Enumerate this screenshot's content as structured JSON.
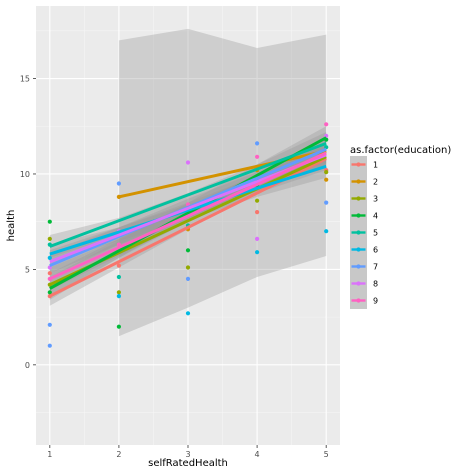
{
  "chart_data": {
    "type": "scatter",
    "xlabel": "selfRatedHealth",
    "ylabel": "health",
    "xlim": [
      0.8,
      5.2
    ],
    "ylim": [
      -4.2,
      18.8
    ],
    "x_ticks": [
      "1",
      "2",
      "3",
      "4",
      "5"
    ],
    "y_ticks": [
      "0",
      "5",
      "10",
      "15"
    ],
    "grid": true,
    "legend_title": "as.factor(education)",
    "legend_position": "right",
    "series": [
      {
        "name": "1",
        "color": "#F8766D",
        "fit": {
          "x": [
            1,
            5
          ],
          "y": [
            3.6,
            10.8
          ]
        },
        "ci": {
          "x": [
            1,
            2,
            3,
            4,
            5
          ],
          "lo": [
            3.1,
            5.1,
            7.1,
            9.0,
            10.2
          ],
          "hi": [
            4.1,
            6.1,
            8.0,
            9.9,
            11.4
          ]
        },
        "points": [
          [
            1,
            3.6
          ],
          [
            1,
            4.8
          ],
          [
            2,
            5.2
          ],
          [
            3,
            8.2
          ],
          [
            4,
            8.0
          ],
          [
            5,
            10.2
          ]
        ]
      },
      {
        "name": "2",
        "color": "#D39200",
        "fit": {
          "x": [
            2,
            5
          ],
          "y": [
            8.8,
            11.2
          ]
        },
        "ci": {
          "x": [
            2,
            3,
            4,
            5
          ],
          "lo": [
            1.5,
            3.0,
            4.6,
            5.7
          ],
          "hi": [
            17.0,
            17.6,
            16.6,
            17.3
          ]
        },
        "points": [
          [
            2,
            8.8
          ],
          [
            3,
            7.1
          ],
          [
            4,
            10.2
          ],
          [
            5,
            9.7
          ]
        ]
      },
      {
        "name": "3",
        "color": "#93AA00",
        "fit": {
          "x": [
            1,
            5
          ],
          "y": [
            4.2,
            10.9
          ]
        },
        "ci": {
          "x": [
            1,
            2,
            3,
            4,
            5
          ],
          "lo": [
            3.6,
            5.6,
            7.5,
            9.2,
            10.3
          ],
          "hi": [
            4.8,
            6.6,
            8.3,
            10.0,
            11.5
          ]
        },
        "points": [
          [
            1,
            4.2
          ],
          [
            1,
            6.6
          ],
          [
            2,
            3.8
          ],
          [
            3,
            5.1
          ],
          [
            4,
            8.6
          ],
          [
            5,
            10.1
          ]
        ]
      },
      {
        "name": "4",
        "color": "#00BA38",
        "fit": {
          "x": [
            1,
            5
          ],
          "y": [
            4.0,
            11.9
          ]
        },
        "ci": {
          "x": [
            1,
            2,
            3,
            4,
            5
          ],
          "lo": [
            3.4,
            5.6,
            7.7,
            9.7,
            11.3
          ],
          "hi": [
            4.6,
            6.5,
            8.5,
            10.5,
            12.5
          ]
        },
        "points": [
          [
            1,
            7.5
          ],
          [
            1,
            3.8
          ],
          [
            2,
            2.0
          ],
          [
            3,
            6.0
          ],
          [
            4,
            9.4
          ],
          [
            5,
            11.8
          ]
        ]
      },
      {
        "name": "5",
        "color": "#00C19F",
        "fit": {
          "x": [
            1,
            5
          ],
          "y": [
            6.2,
            11.6
          ]
        },
        "ci": {
          "x": [
            1,
            2,
            3,
            4,
            5
          ],
          "lo": [
            5.6,
            6.8,
            8.3,
            9.7,
            11.0
          ],
          "hi": [
            6.8,
            7.7,
            9.0,
            10.5,
            12.2
          ]
        },
        "points": [
          [
            1,
            6.3
          ],
          [
            2,
            4.6
          ],
          [
            3,
            7.3
          ],
          [
            4,
            9.7
          ],
          [
            5,
            11.4
          ]
        ]
      },
      {
        "name": "6",
        "color": "#00B9E3",
        "fit": {
          "x": [
            1,
            5
          ],
          "y": [
            5.8,
            10.4
          ]
        },
        "ci": {
          "x": [
            1,
            2,
            3,
            4,
            5
          ],
          "lo": [
            5.3,
            6.5,
            7.6,
            8.8,
            9.8
          ],
          "hi": [
            6.3,
            7.2,
            8.4,
            9.6,
            11.0
          ]
        },
        "points": [
          [
            1,
            5.6
          ],
          [
            2,
            3.6
          ],
          [
            3,
            2.7
          ],
          [
            4,
            5.9
          ],
          [
            5,
            7.0
          ]
        ]
      },
      {
        "name": "7",
        "color": "#619CFF",
        "fit": {
          "x": [
            1,
            5
          ],
          "y": [
            5.2,
            11.3
          ]
        },
        "ci": {
          "x": [
            1,
            2,
            3,
            4,
            5
          ],
          "lo": [
            4.6,
            6.3,
            7.9,
            9.3,
            10.6
          ],
          "hi": [
            5.8,
            7.2,
            8.7,
            10.1,
            11.8
          ]
        },
        "points": [
          [
            1,
            1.0
          ],
          [
            1,
            2.1
          ],
          [
            2,
            9.5
          ],
          [
            3,
            4.5
          ],
          [
            4,
            11.6
          ],
          [
            5,
            8.5
          ]
        ]
      },
      {
        "name": "8",
        "color": "#DB72FB",
        "fit": {
          "x": [
            1,
            5
          ],
          "y": [
            5.4,
            11.0
          ]
        },
        "ci": {
          "x": [
            1,
            2,
            3,
            4,
            5
          ],
          "lo": [
            4.8,
            6.3,
            7.7,
            9.1,
            10.4
          ],
          "hi": [
            6.0,
            7.2,
            8.5,
            9.9,
            11.6
          ]
        },
        "points": [
          [
            1,
            5.1
          ],
          [
            2,
            7.0
          ],
          [
            3,
            10.6
          ],
          [
            4,
            6.6
          ],
          [
            5,
            12.0
          ]
        ]
      },
      {
        "name": "9",
        "color": "#FF61C3",
        "fit": {
          "x": [
            1,
            5
          ],
          "y": [
            4.5,
            11.1
          ]
        },
        "ci": {
          "x": [
            1,
            2,
            3,
            4,
            5
          ],
          "lo": [
            3.9,
            5.7,
            7.5,
            9.1,
            10.5
          ],
          "hi": [
            5.1,
            6.6,
            8.3,
            9.9,
            11.7
          ]
        },
        "points": [
          [
            1,
            4.5
          ],
          [
            2,
            6.3
          ],
          [
            3,
            8.4
          ],
          [
            4,
            10.9
          ],
          [
            5,
            12.6
          ]
        ]
      }
    ]
  }
}
